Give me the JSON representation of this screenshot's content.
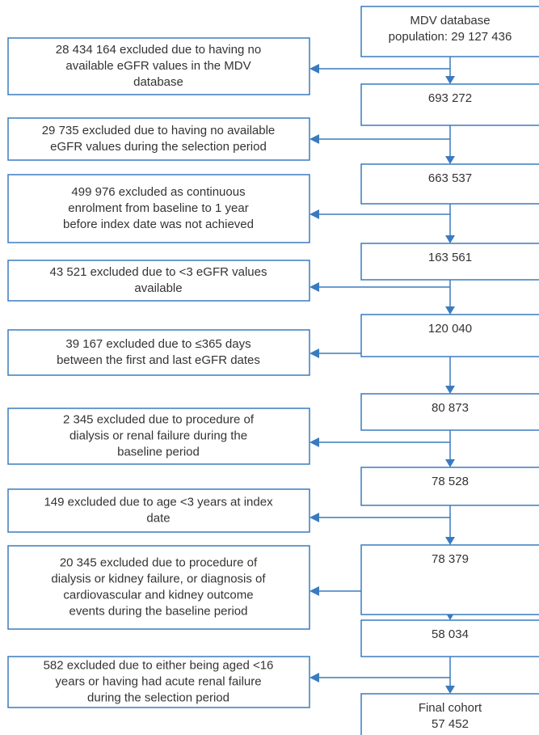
{
  "main_boxes": [
    {
      "lines": [
        "MDV database",
        "population: 29 127 436"
      ]
    },
    {
      "lines": [
        "693 272"
      ]
    },
    {
      "lines": [
        "663 537"
      ]
    },
    {
      "lines": [
        "163 561"
      ]
    },
    {
      "lines": [
        "120 040"
      ]
    },
    {
      "lines": [
        "80 873"
      ]
    },
    {
      "lines": [
        "78 528"
      ]
    },
    {
      "lines": [
        "78 379"
      ]
    },
    {
      "lines": [
        "58 034"
      ]
    },
    {
      "lines": [
        "Final cohort",
        "57 452"
      ]
    }
  ],
  "exclusions": [
    {
      "lines": [
        "28 434 164 excluded due to having no",
        "available eGFR values in the MDV",
        "database"
      ]
    },
    {
      "lines": [
        "29 735 excluded due to having no available",
        "eGFR values during the selection period"
      ]
    },
    {
      "lines": [
        "499 976 excluded as continuous",
        "enrolment from baseline to 1 year",
        "before index date was not achieved"
      ]
    },
    {
      "lines": [
        "43 521 excluded due to <3 eGFR values",
        "available"
      ]
    },
    {
      "lines": [
        "39 167 excluded due to ≤365 days",
        "between the first and last eGFR dates"
      ]
    },
    {
      "lines": [
        "2 345 excluded due to procedure of",
        "dialysis or renal failure during the",
        "baseline period"
      ]
    },
    {
      "lines": [
        "149 excluded due to age <3 years at index",
        "date"
      ]
    },
    {
      "lines": [
        "20 345 excluded due to procedure of",
        "dialysis or kidney failure, or diagnosis of",
        "cardiovascular and kidney outcome",
        "events during the baseline period"
      ]
    },
    {
      "lines": [
        "582 excluded due to either being aged <16",
        "years or having had acute renal failure",
        "during the selection period"
      ]
    }
  ]
}
